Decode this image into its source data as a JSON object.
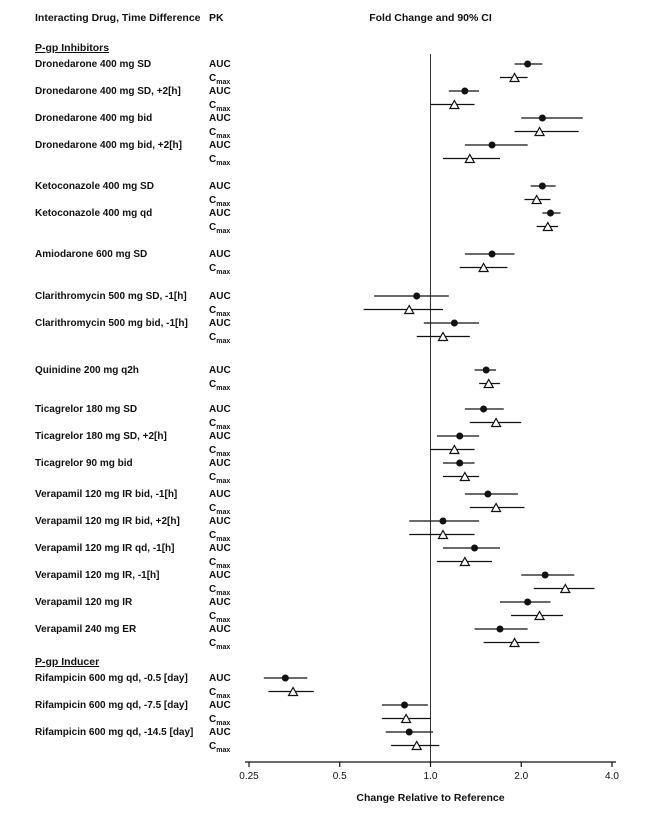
{
  "header": {
    "col_drug": "Interacting Drug, Time Difference",
    "col_pk": "PK",
    "col_plot": "Fold Change and 90% CI"
  },
  "axis": {
    "min": 0.25,
    "max": 4.0,
    "scale": "log2",
    "reference": 1.0,
    "ticks": [
      0.25,
      0.5,
      1.0,
      2.0,
      4.0
    ],
    "tick_labels": [
      "0.25",
      "0.5",
      "1.0",
      "2.0",
      "4.0"
    ],
    "caption": "Change Relative to Reference"
  },
  "chart_data": {
    "type": "forest",
    "title": "Fold Change and 90% CI",
    "xlabel": "Change Relative to Reference",
    "xlim": [
      0.25,
      4.0
    ],
    "marker_legend": {
      "AUC": "filled-circle",
      "Cmax": "open-triangle"
    },
    "sections": [
      {
        "title": "P-gp Inhibitors",
        "groups": [
          {
            "label": "Dronedarone 400 mg SD",
            "rows": [
              {
                "pk": "AUC",
                "marker": "circle",
                "est": 2.1,
                "lo": 1.9,
                "hi": 2.35
              },
              {
                "pk": "Cmax",
                "marker": "triangle",
                "est": 1.9,
                "lo": 1.7,
                "hi": 2.1
              }
            ]
          },
          {
            "label": "Dronedarone 400 mg SD, +2[h]",
            "rows": [
              {
                "pk": "AUC",
                "marker": "circle",
                "est": 1.3,
                "lo": 1.15,
                "hi": 1.45
              },
              {
                "pk": "Cmax",
                "marker": "triangle",
                "est": 1.2,
                "lo": 1.0,
                "hi": 1.4
              }
            ]
          },
          {
            "label": "Dronedarone 400 mg bid",
            "rows": [
              {
                "pk": "AUC",
                "marker": "circle",
                "est": 2.35,
                "lo": 2.0,
                "hi": 3.2
              },
              {
                "pk": "Cmax",
                "marker": "triangle",
                "est": 2.3,
                "lo": 1.9,
                "hi": 3.1
              }
            ]
          },
          {
            "label": "Dronedarone 400 mg bid, +2[h]",
            "rows": [
              {
                "pk": "AUC",
                "marker": "circle",
                "est": 1.6,
                "lo": 1.3,
                "hi": 2.1
              },
              {
                "pk": "Cmax",
                "marker": "triangle",
                "est": 1.35,
                "lo": 1.1,
                "hi": 1.7
              }
            ]
          },
          {
            "label": "Ketoconazole 400 mg SD",
            "gap_before": 14,
            "rows": [
              {
                "pk": "AUC",
                "marker": "circle",
                "est": 2.35,
                "lo": 2.15,
                "hi": 2.6
              },
              {
                "pk": "Cmax",
                "marker": "triangle",
                "est": 2.25,
                "lo": 2.05,
                "hi": 2.5
              }
            ]
          },
          {
            "label": "Ketoconazole 400 mg qd",
            "rows": [
              {
                "pk": "AUC",
                "marker": "circle",
                "est": 2.5,
                "lo": 2.35,
                "hi": 2.7
              },
              {
                "pk": "Cmax",
                "marker": "triangle",
                "est": 2.45,
                "lo": 2.25,
                "hi": 2.65
              }
            ]
          },
          {
            "label": "Amiodarone 600 mg SD",
            "gap_before": 14,
            "rows": [
              {
                "pk": "AUC",
                "marker": "circle",
                "est": 1.6,
                "lo": 1.3,
                "hi": 1.9
              },
              {
                "pk": "Cmax",
                "marker": "triangle",
                "est": 1.5,
                "lo": 1.25,
                "hi": 1.8
              }
            ]
          },
          {
            "label": "Clarithromycin 500 mg SD, -1[h]",
            "gap_before": 15,
            "rows": [
              {
                "pk": "AUC",
                "marker": "circle",
                "est": 0.9,
                "lo": 0.65,
                "hi": 1.15
              },
              {
                "pk": "Cmax",
                "marker": "triangle",
                "est": 0.85,
                "lo": 0.6,
                "hi": 1.1
              }
            ]
          },
          {
            "label": "Clarithromycin 500 mg bid, -1[h]",
            "rows": [
              {
                "pk": "AUC",
                "marker": "circle",
                "est": 1.2,
                "lo": 0.95,
                "hi": 1.45
              },
              {
                "pk": "Cmax",
                "marker": "triangle",
                "est": 1.1,
                "lo": 0.9,
                "hi": 1.35
              }
            ]
          },
          {
            "label": "Quinidine 200 mg q2h",
            "gap_before": 20,
            "rows": [
              {
                "pk": "AUC",
                "marker": "circle",
                "est": 1.53,
                "lo": 1.4,
                "hi": 1.65
              },
              {
                "pk": "Cmax",
                "marker": "triangle",
                "est": 1.56,
                "lo": 1.45,
                "hi": 1.7
              }
            ]
          },
          {
            "label": "Ticagrelor 180 mg SD",
            "gap_before": 12,
            "rows": [
              {
                "pk": "AUC",
                "marker": "circle",
                "est": 1.5,
                "lo": 1.3,
                "hi": 1.75
              },
              {
                "pk": "Cmax",
                "marker": "triangle",
                "est": 1.65,
                "lo": 1.35,
                "hi": 2.0
              }
            ]
          },
          {
            "label": "Ticagrelor 180 mg SD, +2[h]",
            "rows": [
              {
                "pk": "AUC",
                "marker": "circle",
                "est": 1.25,
                "lo": 1.05,
                "hi": 1.45
              },
              {
                "pk": "Cmax",
                "marker": "triangle",
                "est": 1.2,
                "lo": 1.0,
                "hi": 1.4
              }
            ]
          },
          {
            "label": "Ticagrelor 90 mg bid",
            "rows": [
              {
                "pk": "AUC",
                "marker": "circle",
                "est": 1.25,
                "lo": 1.1,
                "hi": 1.4
              },
              {
                "pk": "Cmax",
                "marker": "triangle",
                "est": 1.3,
                "lo": 1.1,
                "hi": 1.45
              }
            ]
          },
          {
            "label": "Verapamil 120 mg IR bid, -1[h]",
            "gap_before": 4,
            "rows": [
              {
                "pk": "AUC",
                "marker": "circle",
                "est": 1.55,
                "lo": 1.3,
                "hi": 1.95
              },
              {
                "pk": "Cmax",
                "marker": "triangle",
                "est": 1.65,
                "lo": 1.35,
                "hi": 2.05
              }
            ]
          },
          {
            "label": "Verapamil 120 mg IR bid, +2[h]",
            "rows": [
              {
                "pk": "AUC",
                "marker": "circle",
                "est": 1.1,
                "lo": 0.85,
                "hi": 1.45
              },
              {
                "pk": "Cmax",
                "marker": "triangle",
                "est": 1.1,
                "lo": 0.85,
                "hi": 1.4
              }
            ]
          },
          {
            "label": "Verapamil 120 mg IR qd, -1[h]",
            "rows": [
              {
                "pk": "AUC",
                "marker": "circle",
                "est": 1.4,
                "lo": 1.1,
                "hi": 1.7
              },
              {
                "pk": "Cmax",
                "marker": "triangle",
                "est": 1.3,
                "lo": 1.05,
                "hi": 1.6
              }
            ]
          },
          {
            "label": "Verapamil 120 mg IR, -1[h]",
            "rows": [
              {
                "pk": "AUC",
                "marker": "circle",
                "est": 2.4,
                "lo": 2.0,
                "hi": 3.0
              },
              {
                "pk": "Cmax",
                "marker": "triangle",
                "est": 2.8,
                "lo": 2.2,
                "hi": 3.5
              }
            ]
          },
          {
            "label": "Verapamil 120 mg IR",
            "rows": [
              {
                "pk": "AUC",
                "marker": "circle",
                "est": 2.1,
                "lo": 1.7,
                "hi": 2.5
              },
              {
                "pk": "Cmax",
                "marker": "triangle",
                "est": 2.3,
                "lo": 1.85,
                "hi": 2.75
              }
            ]
          },
          {
            "label": "Verapamil 240 mg ER",
            "rows": [
              {
                "pk": "AUC",
                "marker": "circle",
                "est": 1.7,
                "lo": 1.4,
                "hi": 2.1
              },
              {
                "pk": "Cmax",
                "marker": "triangle",
                "est": 1.9,
                "lo": 1.5,
                "hi": 2.3
              }
            ]
          }
        ]
      },
      {
        "title": "P-gp Inducer",
        "gap_before": 6,
        "groups": [
          {
            "label": "Rifampicin 600 mg qd, -0.5 [day]",
            "rows": [
              {
                "pk": "AUC",
                "marker": "circle",
                "est": 0.33,
                "lo": 0.28,
                "hi": 0.39
              },
              {
                "pk": "Cmax",
                "marker": "triangle",
                "est": 0.35,
                "lo": 0.29,
                "hi": 0.41
              }
            ]
          },
          {
            "label": "Rifampicin 600 mg qd, -7.5 [day]",
            "rows": [
              {
                "pk": "AUC",
                "marker": "circle",
                "est": 0.82,
                "lo": 0.69,
                "hi": 0.98
              },
              {
                "pk": "Cmax",
                "marker": "triangle",
                "est": 0.83,
                "lo": 0.69,
                "hi": 1.0
              }
            ]
          },
          {
            "label": "Rifampicin 600 mg qd, -14.5 [day]",
            "rows": [
              {
                "pk": "AUC",
                "marker": "circle",
                "est": 0.85,
                "lo": 0.71,
                "hi": 1.02
              },
              {
                "pk": "Cmax",
                "marker": "triangle",
                "est": 0.9,
                "lo": 0.74,
                "hi": 1.07
              }
            ]
          }
        ]
      }
    ]
  }
}
